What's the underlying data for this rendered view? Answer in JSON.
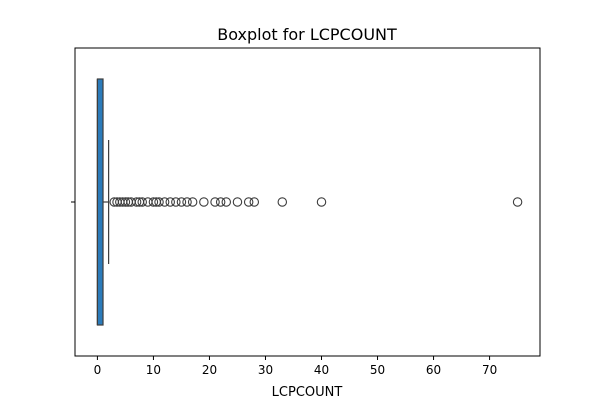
{
  "chart_data": {
    "type": "boxplot",
    "title": "Boxplot for LCPCOUNT",
    "xlabel": "LCPCOUNT",
    "ylabel": "",
    "orientation": "horizontal",
    "xlim": [
      -4,
      79
    ],
    "xticks": [
      0,
      10,
      20,
      30,
      40,
      50,
      60,
      70
    ],
    "grid": false,
    "box_color": "#2b7bba",
    "series": [
      {
        "min": 0,
        "q1": 0,
        "median": 0,
        "q3": 1,
        "max": 2,
        "outliers": [
          3,
          3.5,
          4,
          4.5,
          5,
          5.5,
          6,
          7,
          7.5,
          8,
          9,
          10,
          10.5,
          11,
          12,
          13,
          14,
          15,
          16,
          17,
          19,
          21,
          22,
          23,
          25,
          27,
          28,
          33,
          40,
          75
        ]
      }
    ]
  }
}
